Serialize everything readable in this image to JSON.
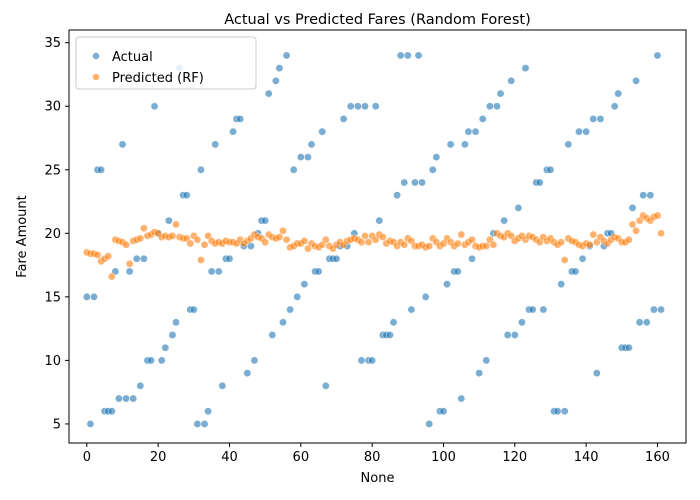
{
  "chart_data": {
    "type": "scatter",
    "title": "Actual vs Predicted Fares (Random Forest)",
    "xlabel": "None",
    "ylabel": "Fare Amount",
    "xlim": [
      -5,
      168
    ],
    "ylim": [
      3.5,
      36
    ],
    "x_ticks": [
      0,
      20,
      40,
      60,
      80,
      100,
      120,
      140,
      160
    ],
    "y_ticks": [
      5,
      10,
      15,
      20,
      25,
      30,
      35
    ],
    "grid": false,
    "legend_position": "top-left",
    "series": [
      {
        "name": "Actual",
        "color": "#1f77b4",
        "x": [
          0,
          1,
          2,
          3,
          4,
          5,
          6,
          7,
          8,
          9,
          10,
          11,
          12,
          13,
          14,
          15,
          16,
          17,
          18,
          19,
          20,
          21,
          22,
          23,
          24,
          25,
          26,
          27,
          28,
          29,
          30,
          31,
          32,
          33,
          34,
          35,
          36,
          37,
          38,
          39,
          40,
          41,
          42,
          43,
          44,
          45,
          46,
          47,
          48,
          49,
          50,
          51,
          52,
          53,
          54,
          55,
          56,
          57,
          58,
          59,
          60,
          61,
          62,
          63,
          64,
          65,
          66,
          67,
          68,
          69,
          70,
          71,
          72,
          73,
          74,
          75,
          76,
          77,
          78,
          79,
          80,
          81,
          82,
          83,
          84,
          85,
          86,
          87,
          88,
          89,
          90,
          91,
          92,
          93,
          94,
          95,
          96,
          97,
          98,
          99,
          100,
          101,
          102,
          103,
          104,
          105,
          106,
          107,
          108,
          109,
          110,
          111,
          112,
          113,
          114,
          115,
          116,
          117,
          118,
          119,
          120,
          121,
          122,
          123,
          124,
          125,
          126,
          127,
          128,
          129,
          130,
          131,
          132,
          133,
          134,
          135,
          136,
          137,
          138,
          139,
          140,
          141,
          142,
          143,
          144,
          145,
          146,
          147,
          148,
          149,
          150,
          151,
          152,
          153,
          154,
          155,
          156,
          157,
          158,
          159,
          160,
          161
        ],
        "y": [
          15,
          5,
          15,
          25,
          25,
          6,
          6,
          6,
          17,
          7,
          27,
          7,
          17,
          7,
          18,
          8,
          18,
          10,
          10,
          30,
          20,
          10,
          11,
          21,
          12,
          13,
          33,
          23,
          23,
          14,
          14,
          5,
          25,
          5,
          6,
          17,
          27,
          17,
          8,
          18,
          18,
          28,
          29,
          29,
          19,
          9,
          19,
          10,
          20,
          21,
          21,
          31,
          12,
          32,
          33,
          13,
          34,
          14,
          25,
          15,
          26,
          16,
          26,
          27,
          17,
          17,
          28,
          8,
          18,
          18,
          18,
          19,
          29,
          19,
          30,
          20,
          30,
          10,
          30,
          10,
          10,
          30,
          21,
          12,
          12,
          12,
          13,
          23,
          34,
          24,
          34,
          14,
          24,
          34,
          24,
          15,
          5,
          25,
          26,
          6,
          6,
          16,
          27,
          17,
          17,
          7,
          27,
          28,
          18,
          28,
          9,
          29,
          10,
          30,
          20,
          30,
          31,
          21,
          12,
          32,
          12,
          22,
          13,
          33,
          14,
          14,
          24,
          24,
          14,
          25,
          25,
          6,
          6,
          16,
          6,
          27,
          17,
          17,
          28,
          18,
          28,
          19,
          29,
          9,
          29,
          19,
          20,
          20,
          30,
          31,
          11,
          11,
          11,
          22,
          32,
          13,
          23,
          13,
          23,
          14,
          34,
          14
        ]
      },
      {
        "name": "Predicted (RF)",
        "color": "#ff7f0e",
        "x": [
          0,
          1,
          2,
          3,
          4,
          5,
          6,
          7,
          8,
          9,
          10,
          11,
          12,
          13,
          14,
          15,
          16,
          17,
          18,
          19,
          20,
          21,
          22,
          23,
          24,
          25,
          26,
          27,
          28,
          29,
          30,
          31,
          32,
          33,
          34,
          35,
          36,
          37,
          38,
          39,
          40,
          41,
          42,
          43,
          44,
          45,
          46,
          47,
          48,
          49,
          50,
          51,
          52,
          53,
          54,
          55,
          56,
          57,
          58,
          59,
          60,
          61,
          62,
          63,
          64,
          65,
          66,
          67,
          68,
          69,
          70,
          71,
          72,
          73,
          74,
          75,
          76,
          77,
          78,
          79,
          80,
          81,
          82,
          83,
          84,
          85,
          86,
          87,
          88,
          89,
          90,
          91,
          92,
          93,
          94,
          95,
          96,
          97,
          98,
          99,
          100,
          101,
          102,
          103,
          104,
          105,
          106,
          107,
          108,
          109,
          110,
          111,
          112,
          113,
          114,
          115,
          116,
          117,
          118,
          119,
          120,
          121,
          122,
          123,
          124,
          125,
          126,
          127,
          128,
          129,
          130,
          131,
          132,
          133,
          134,
          135,
          136,
          137,
          138,
          139,
          140,
          141,
          142,
          143,
          144,
          145,
          146,
          147,
          148,
          149,
          150,
          151,
          152,
          153,
          154,
          155,
          156,
          157,
          158,
          159,
          160,
          161
        ],
        "y": [
          18.5,
          18.4,
          18.4,
          18.3,
          17.8,
          18.0,
          18.2,
          16.6,
          19.5,
          19.4,
          19.3,
          19.1,
          17.6,
          19.4,
          19.5,
          19.6,
          20.4,
          19.8,
          19.9,
          20.1,
          20.0,
          19.7,
          19.8,
          19.7,
          19.8,
          20.7,
          19.7,
          19.6,
          19.6,
          19.2,
          19.8,
          19.5,
          17.9,
          19.1,
          19.8,
          19.4,
          19.2,
          19.3,
          19.2,
          19.4,
          19.3,
          19.3,
          19.2,
          19.5,
          19.2,
          19.4,
          19.6,
          19.9,
          19.7,
          19.6,
          19.3,
          19.9,
          19.7,
          19.6,
          19.7,
          20.2,
          19.5,
          18.9,
          19.0,
          19.2,
          19.2,
          19.4,
          18.8,
          19.2,
          19.0,
          18.9,
          19.1,
          19.5,
          19.0,
          18.8,
          19.1,
          19.3,
          19.1,
          19.4,
          19.5,
          19.6,
          19.5,
          19.3,
          19.8,
          19.3,
          19.8,
          19.5,
          19.9,
          19.7,
          19.2,
          19.4,
          19.3,
          19.0,
          19.3,
          19.1,
          19.6,
          19.4,
          19.0,
          19.0,
          19.1,
          18.9,
          19.0,
          19.6,
          19.3,
          19.0,
          19.2,
          19.6,
          19.3,
          19.0,
          19.2,
          19.9,
          19.1,
          19.3,
          19.5,
          19.0,
          18.9,
          19.0,
          19.0,
          19.5,
          19.1,
          20.0,
          19.8,
          19.7,
          20.0,
          19.8,
          19.4,
          19.6,
          19.8,
          19.5,
          19.8,
          19.7,
          19.5,
          19.3,
          19.7,
          19.4,
          19.6,
          19.3,
          19.1,
          19.3,
          17.9,
          19.6,
          19.4,
          19.3,
          19.1,
          19.0,
          19.2,
          19.1,
          19.9,
          19.3,
          19.7,
          19.4,
          19.2,
          19.5,
          19.7,
          19.6,
          19.3,
          19.3,
          19.5,
          20.7,
          20.2,
          21.0,
          21.4,
          21.2,
          21.0,
          21.3,
          21.4,
          20.0
        ]
      }
    ]
  }
}
